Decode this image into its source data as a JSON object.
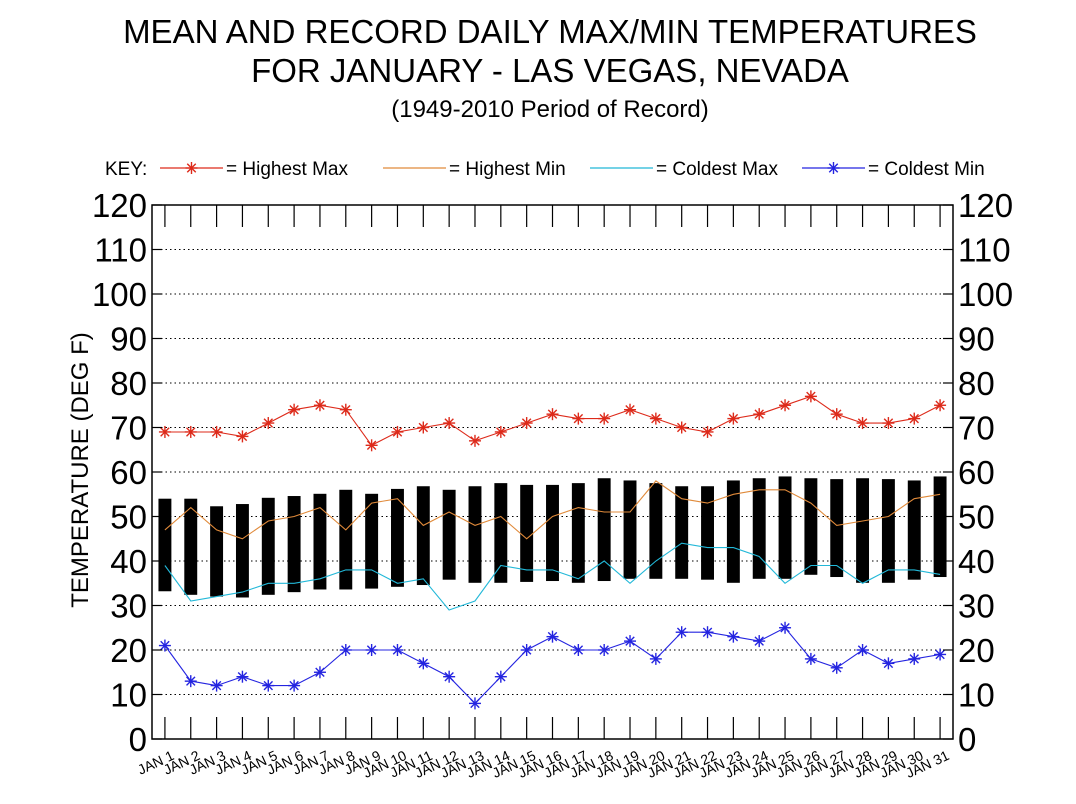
{
  "chart_data": {
    "type": "bar",
    "title": "MEAN AND RECORD DAILY MAX/MIN TEMPERATURES",
    "title_line2": "FOR JANUARY - LAS VEGAS, NEVADA",
    "subtitle": "(1949-2010 Period of Record)",
    "ylabel": "TEMPERATURE (DEG F)",
    "xlabel": "",
    "ylim": [
      0,
      120
    ],
    "yticks": [
      0,
      10,
      20,
      30,
      40,
      50,
      60,
      70,
      80,
      90,
      100,
      110,
      120
    ],
    "grid": true,
    "legend_prefix": "KEY:",
    "legend_position": "top",
    "categories": [
      "JAN 1",
      "JAN 2",
      "JAN 3",
      "JAN 4",
      "JAN 5",
      "JAN 6",
      "JAN 7",
      "JAN 8",
      "JAN 9",
      "JAN 10",
      "JAN 11",
      "JAN 12",
      "JAN 13",
      "JAN 14",
      "JAN 15",
      "JAN 16",
      "JAN 17",
      "JAN 18",
      "JAN 19",
      "JAN 20",
      "JAN 21",
      "JAN 22",
      "JAN 23",
      "JAN 24",
      "JAN 25",
      "JAN 26",
      "JAN 27",
      "JAN 28",
      "JAN 29",
      "JAN 30",
      "JAN 31"
    ],
    "mean_bars": {
      "color": "#000000",
      "max": [
        54,
        54,
        52.3,
        52.8,
        54.2,
        54.6,
        55.1,
        56,
        55.1,
        56.2,
        56.8,
        56,
        56.8,
        57.5,
        57.1,
        57.1,
        57.5,
        58.6,
        58.1,
        57.5,
        56.8,
        56.8,
        58.1,
        58.6,
        59,
        58.6,
        58.4,
        58.6,
        58.4,
        58.1,
        59
      ],
      "min": [
        33.2,
        32.4,
        32,
        31.8,
        32.4,
        33,
        33.6,
        33.6,
        33.8,
        34.2,
        34.6,
        35.8,
        35.1,
        35.1,
        35.3,
        35.5,
        35.1,
        35.5,
        36,
        36,
        36,
        35.8,
        35.1,
        36,
        36,
        36.9,
        36.4,
        35.1,
        35.1,
        35.8,
        36.4
      ]
    },
    "series": [
      {
        "name": "= Highest Max",
        "color": "#dd2a1a",
        "marker": "star",
        "values": [
          69,
          69,
          69,
          68,
          71,
          74,
          75,
          74,
          66,
          69,
          70,
          71,
          67,
          69,
          71,
          73,
          72,
          72,
          74,
          72,
          70,
          69,
          72,
          73,
          75,
          77,
          73,
          71,
          71,
          72,
          75
        ]
      },
      {
        "name": "= Highest Min",
        "color": "#e08a3a",
        "marker": "none",
        "values": [
          47,
          52,
          47,
          45,
          49,
          50,
          52,
          47,
          53,
          54,
          48,
          51,
          48,
          50,
          45,
          50,
          52,
          51,
          51,
          58,
          54,
          53,
          55,
          56,
          56,
          53,
          48,
          49,
          50,
          54,
          55
        ]
      },
      {
        "name": "= Coldest Max",
        "color": "#22b8d8",
        "marker": "none",
        "values": [
          39,
          31,
          32,
          33,
          35,
          35,
          36,
          38,
          38,
          35,
          36,
          29,
          31,
          39,
          38,
          38,
          36,
          40,
          35,
          40,
          44,
          43,
          43,
          41,
          35,
          39,
          39,
          35,
          38,
          38,
          37
        ]
      },
      {
        "name": "= Coldest Min",
        "color": "#2424e0",
        "marker": "star",
        "values": [
          21,
          13,
          12,
          14,
          12,
          12,
          15,
          20,
          20,
          20,
          17,
          14,
          8,
          14,
          20,
          23,
          20,
          20,
          22,
          18,
          24,
          24,
          23,
          22,
          25,
          18,
          16,
          20,
          17,
          18,
          19
        ]
      }
    ]
  }
}
